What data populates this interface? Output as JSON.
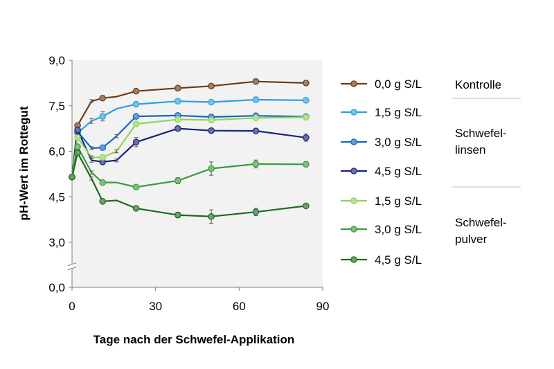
{
  "chart_data": {
    "type": "line",
    "title": "",
    "xlabel": "Tage nach der Schwefel-Applikation",
    "ylabel": "pH-Wert im Rottegut",
    "xlim": [
      0,
      90
    ],
    "ylim": [
      0,
      9
    ],
    "axis_break_between": [
      0,
      3
    ],
    "x_ticks": [
      0,
      30,
      60,
      90
    ],
    "x_tick_labels": [
      "0",
      "30",
      "60",
      "90"
    ],
    "y_ticks": [
      0,
      3,
      4.5,
      6,
      7.5,
      9
    ],
    "y_tick_labels": [
      "0,0",
      "3,0",
      "4,5",
      "6,0",
      "7,5",
      "9,0"
    ],
    "grid": false,
    "plot_background": "#f2f2f2",
    "series": [
      {
        "name": "0,0 g S/L",
        "color": "#6b3a14",
        "x": [
          0,
          2,
          7,
          11,
          16,
          23,
          38,
          50,
          66,
          84
        ],
        "y": [
          5.15,
          6.85,
          7.65,
          7.75,
          7.8,
          7.98,
          8.08,
          8.15,
          8.3,
          8.25
        ],
        "markers_at": [
          0,
          2,
          11,
          23,
          38,
          50,
          66,
          84
        ],
        "err": [
          0,
          0.03,
          0.05,
          0.06,
          0.03,
          0.04,
          0.03,
          0.04,
          0.03,
          0.03
        ]
      },
      {
        "name": "1,5 g S/L",
        "color": "#2ba0e0",
        "x": [
          0,
          2,
          7,
          11,
          16,
          23,
          38,
          50,
          66,
          84
        ],
        "y": [
          5.15,
          6.6,
          7.0,
          7.15,
          7.4,
          7.55,
          7.65,
          7.62,
          7.7,
          7.68
        ],
        "markers_at": [
          0,
          2,
          11,
          23,
          38,
          50,
          66,
          84
        ],
        "err": [
          0,
          0.05,
          0.08,
          0.15,
          0.04,
          0.05,
          0.04,
          0.04,
          0.08,
          0.04
        ]
      },
      {
        "name": "3,0 g S/L",
        "color": "#1565c0",
        "x": [
          0,
          2,
          7,
          11,
          16,
          23,
          38,
          50,
          66,
          84
        ],
        "y": [
          5.15,
          6.65,
          6.1,
          6.12,
          6.5,
          7.15,
          7.18,
          7.13,
          7.17,
          7.14
        ],
        "markers_at": [
          0,
          2,
          11,
          23,
          38,
          50,
          66,
          84
        ],
        "err": [
          0,
          0.05,
          0.05,
          0.06,
          0.05,
          0.05,
          0.04,
          0.04,
          0.05,
          0.04
        ]
      },
      {
        "name": "4,5 g S/L",
        "color": "#1a237e",
        "x": [
          0,
          2,
          7,
          11,
          16,
          23,
          38,
          50,
          66,
          84
        ],
        "y": [
          5.15,
          6.7,
          5.7,
          5.65,
          5.7,
          6.3,
          6.75,
          6.68,
          6.67,
          6.45
        ],
        "markers_at": [
          0,
          2,
          11,
          23,
          38,
          50,
          66,
          84
        ],
        "err": [
          0,
          0.05,
          0.06,
          0.05,
          0.05,
          0.15,
          0.04,
          0.05,
          0.04,
          0.12
        ]
      },
      {
        "name": "1,5 g S/L",
        "color": "#8fd35a",
        "x": [
          0,
          2,
          7,
          11,
          16,
          23,
          38,
          50,
          66,
          84
        ],
        "y": [
          5.15,
          6.45,
          5.8,
          5.8,
          6.0,
          6.9,
          7.05,
          7.03,
          7.1,
          7.12
        ],
        "markers_at": [
          0,
          2,
          11,
          23,
          38,
          50,
          66,
          84
        ],
        "err": [
          0,
          0.05,
          0.05,
          0.06,
          0.05,
          0.06,
          0.05,
          0.05,
          0.05,
          0.05
        ]
      },
      {
        "name": "3,0 g S/L",
        "color": "#3c9a3c",
        "x": [
          0,
          2,
          7,
          11,
          16,
          23,
          38,
          50,
          66,
          84
        ],
        "y": [
          5.15,
          6.15,
          5.3,
          4.97,
          4.97,
          4.82,
          5.03,
          5.43,
          5.58,
          5.57
        ],
        "markers_at": [
          0,
          2,
          11,
          23,
          38,
          50,
          66,
          84
        ],
        "err": [
          0,
          0.06,
          0.05,
          0.05,
          0.04,
          0.06,
          0.1,
          0.22,
          0.13,
          0.08
        ]
      },
      {
        "name": "4,5 g S/L",
        "color": "#1b6b1b",
        "x": [
          0,
          2,
          7,
          11,
          16,
          23,
          38,
          50,
          66,
          84
        ],
        "y": [
          5.15,
          5.95,
          5.1,
          4.35,
          4.38,
          4.12,
          3.9,
          3.85,
          4.0,
          4.2
        ],
        "markers_at": [
          0,
          2,
          11,
          23,
          38,
          50,
          66,
          84
        ],
        "err": [
          0,
          0.06,
          0.05,
          0.06,
          0.04,
          0.05,
          0.09,
          0.22,
          0.12,
          0.07
        ]
      }
    ],
    "legend_position": "right",
    "legend_groups": [
      {
        "label": "Kontrolle",
        "series_indices": [
          0
        ]
      },
      {
        "label": "Schwefel-\nlinsen",
        "series_indices": [
          1,
          2,
          3
        ]
      },
      {
        "label": "Schwefel-\npulver",
        "series_indices": [
          4,
          5,
          6
        ]
      }
    ]
  }
}
